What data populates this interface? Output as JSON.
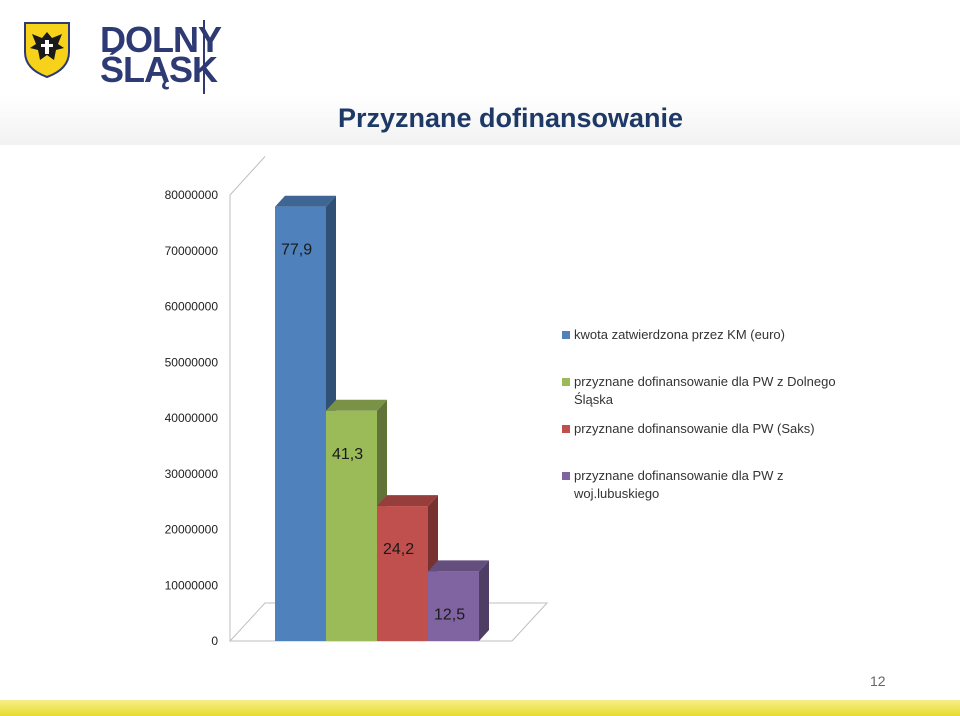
{
  "header": {
    "logo_line1": "DOLNY",
    "logo_line2": "ŚLĄSK",
    "logo_icon": "eagle-coat-of-arms-icon"
  },
  "title": "Przyznane dofinansowanie",
  "page_number": "12",
  "colors": {
    "blue": "#4f81bd",
    "green": "#9bbb59",
    "red": "#c0504d",
    "purple": "#8064a2",
    "title": "#1f3966",
    "bottom_band": "#e8dc2e"
  },
  "chart_data": {
    "type": "bar",
    "categories": [
      ""
    ],
    "series": [
      {
        "name": "kwota zatwierdzona przez KM (euro)",
        "values": [
          77900000
        ],
        "label": "77,9",
        "color": "#4f81bd"
      },
      {
        "name": "przyznane dofinansowanie dla PW  z Dolnego Śląska",
        "values": [
          41300000
        ],
        "label": "41,3",
        "color": "#9bbb59"
      },
      {
        "name": "przyznane dofinansowanie dla PW  (Saks)",
        "values": [
          24200000
        ],
        "label": "24,2",
        "color": "#c0504d"
      },
      {
        "name": "przyznane dofinansowanie dla PW  z woj.lubuskiego",
        "values": [
          12500000
        ],
        "label": "12,5",
        "color": "#8064a2"
      }
    ],
    "yticks": [
      "0",
      "10000000",
      "20000000",
      "30000000",
      "40000000",
      "50000000",
      "60000000",
      "70000000",
      "80000000"
    ],
    "ylim": [
      0,
      80000000
    ],
    "grid": false,
    "legend": "right",
    "style": "3d-column"
  }
}
